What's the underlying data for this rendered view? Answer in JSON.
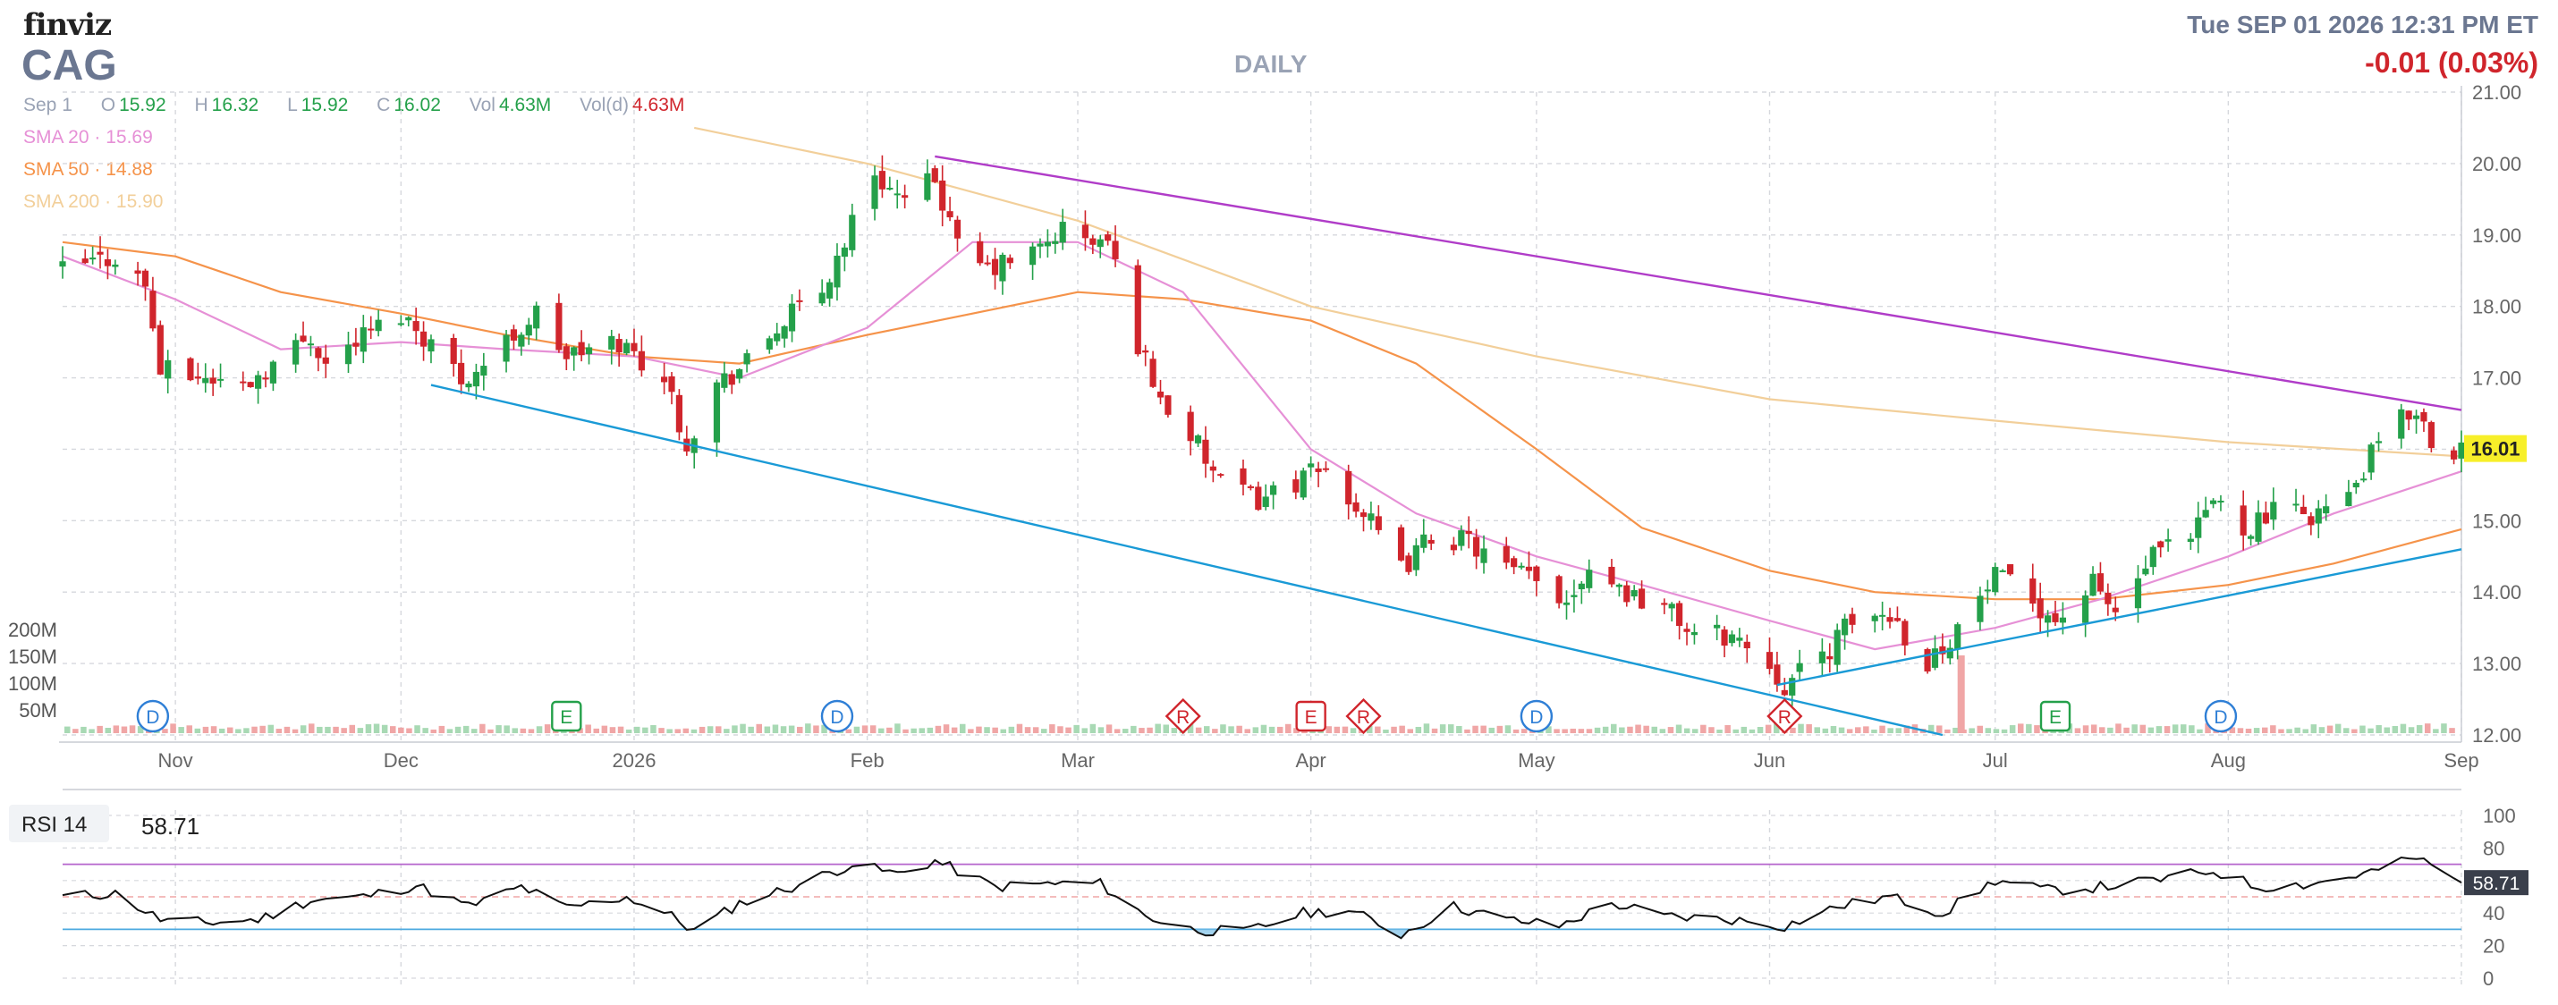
{
  "header": {
    "logo": "finviz",
    "ticker": "CAG",
    "period": "DAILY",
    "datetime": "Tue SEP 01 2026 12:31 PM ET",
    "change": "-0.01 (0.03%)"
  },
  "ohlc": {
    "date": "Sep 1",
    "o_label": "O",
    "o": "15.92",
    "h_label": "H",
    "h": "16.32",
    "l_label": "L",
    "l": "15.92",
    "c_label": "C",
    "c": "16.02",
    "vol_label": "Vol",
    "vol": "4.63M",
    "vold_label": "Vol(d)",
    "vold": "4.63M"
  },
  "sma": [
    {
      "label": "SMA 20",
      "value": "15.69",
      "color": "#e690d6"
    },
    {
      "label": "SMA 50",
      "value": "14.88",
      "color": "#f5934a"
    },
    {
      "label": "SMA 200",
      "value": "15.90",
      "color": "#f2cf9a"
    }
  ],
  "colors": {
    "up": "#24a04a",
    "down": "#d0252c",
    "resistance": "#b03cc8",
    "support": "#1a9ad6",
    "grid": "#d6d8dd"
  },
  "chart_data": [
    {
      "type": "candlestick",
      "title": "DAILY",
      "ylim": [
        12,
        21
      ],
      "y_ticks": [
        "21.00",
        "20.00",
        "19.00",
        "18.00",
        "17.00",
        "16.00",
        "15.00",
        "14.00",
        "13.00",
        "12.00"
      ],
      "x_ticks": [
        "Nov",
        "Dec",
        "2026",
        "Feb",
        "Mar",
        "Apr",
        "May",
        "Jun",
        "Jul",
        "Aug",
        "Sep"
      ],
      "last_price_label": "16.01",
      "volume_ticks": [
        "200M",
        "150M",
        "100M",
        "50M"
      ],
      "close_path": [
        [
          "2025-10-17",
          18.5
        ],
        [
          "2025-10-24",
          18.7
        ],
        [
          "2025-10-28",
          18.3
        ],
        [
          "2025-10-30",
          17.1
        ],
        [
          "2025-11-05",
          17.0
        ],
        [
          "2025-11-10",
          16.9
        ],
        [
          "2025-11-14",
          17.2
        ],
        [
          "2025-11-19",
          17.6
        ],
        [
          "2025-11-21",
          17.2
        ],
        [
          "2025-11-26",
          17.6
        ],
        [
          "2025-12-01",
          17.9
        ],
        [
          "2025-12-05",
          17.5
        ],
        [
          "2025-12-09",
          17.0
        ],
        [
          "2025-12-11",
          17.1
        ],
        [
          "2025-12-16",
          17.6
        ],
        [
          "2025-12-19",
          17.9
        ],
        [
          "2025-12-23",
          17.3
        ],
        [
          "2025-12-30",
          17.5
        ],
        [
          "2026-01-05",
          17.0
        ],
        [
          "2026-01-08",
          16.1
        ],
        [
          "2026-01-12",
          16.9
        ],
        [
          "2026-01-16",
          17.2
        ],
        [
          "2026-01-21",
          17.8
        ],
        [
          "2026-01-26",
          18.2
        ],
        [
          "2026-02-02",
          19.9
        ],
        [
          "2026-02-06",
          19.4
        ],
        [
          "2026-02-10",
          19.8
        ],
        [
          "2026-02-13",
          18.8
        ],
        [
          "2026-02-17",
          18.5
        ],
        [
          "2026-02-24",
          18.8
        ],
        [
          "2026-02-27",
          19.1
        ],
        [
          "2026-03-02",
          18.9
        ],
        [
          "2026-03-05",
          18.9
        ],
        [
          "2026-03-09",
          17.5
        ],
        [
          "2026-03-12",
          16.7
        ],
        [
          "2026-03-16",
          16.2
        ],
        [
          "2026-03-20",
          15.5
        ],
        [
          "2026-03-25",
          15.3
        ],
        [
          "2026-03-31",
          15.6
        ],
        [
          "2026-04-03",
          15.7
        ],
        [
          "2026-04-08",
          15.1
        ],
        [
          "2026-04-13",
          14.3
        ],
        [
          "2026-04-17",
          14.8
        ],
        [
          "2026-04-22",
          14.7
        ],
        [
          "2026-04-27",
          14.3
        ],
        [
          "2026-04-30",
          14.2
        ],
        [
          "2026-05-05",
          13.9
        ],
        [
          "2026-05-08",
          14.4
        ],
        [
          "2026-05-13",
          14.0
        ],
        [
          "2026-05-18",
          13.8
        ],
        [
          "2026-05-22",
          13.4
        ],
        [
          "2026-05-27",
          13.4
        ],
        [
          "2026-06-01",
          13.0
        ],
        [
          "2026-06-03",
          12.7
        ],
        [
          "2026-06-08",
          13.1
        ],
        [
          "2026-06-12",
          13.6
        ],
        [
          "2026-06-17",
          13.7
        ],
        [
          "2026-06-22",
          13.0
        ],
        [
          "2026-06-26",
          13.5
        ],
        [
          "2026-07-01",
          14.2
        ],
        [
          "2026-07-06",
          13.9
        ],
        [
          "2026-07-09",
          13.6
        ],
        [
          "2026-07-14",
          14.1
        ],
        [
          "2026-07-17",
          13.7
        ],
        [
          "2026-07-22",
          14.5
        ],
        [
          "2026-07-27",
          14.7
        ],
        [
          "2026-07-30",
          15.3
        ],
        [
          "2026-08-03",
          14.9
        ],
        [
          "2026-08-07",
          15.1
        ],
        [
          "2026-08-12",
          15.1
        ],
        [
          "2026-08-17",
          15.3
        ],
        [
          "2026-08-21",
          16.1
        ],
        [
          "2026-08-26",
          16.6
        ],
        [
          "2026-08-28",
          16.1
        ],
        [
          "2026-09-01",
          16.0
        ]
      ],
      "sma20_path": [
        [
          "2025-10-17",
          18.7
        ],
        [
          "2025-11-01",
          18.1
        ],
        [
          "2025-11-15",
          17.4
        ],
        [
          "2025-12-01",
          17.5
        ],
        [
          "2025-12-15",
          17.4
        ],
        [
          "2026-01-01",
          17.3
        ],
        [
          "2026-01-15",
          17.0
        ],
        [
          "2026-02-01",
          17.7
        ],
        [
          "2026-02-15",
          18.9
        ],
        [
          "2026-03-01",
          18.9
        ],
        [
          "2026-03-15",
          18.2
        ],
        [
          "2026-04-01",
          16.0
        ],
        [
          "2026-04-15",
          15.1
        ],
        [
          "2026-05-01",
          14.5
        ],
        [
          "2026-05-15",
          14.1
        ],
        [
          "2026-06-01",
          13.6
        ],
        [
          "2026-06-15",
          13.2
        ],
        [
          "2026-07-01",
          13.5
        ],
        [
          "2026-07-15",
          13.9
        ],
        [
          "2026-08-01",
          14.5
        ],
        [
          "2026-08-15",
          15.1
        ],
        [
          "2026-09-01",
          15.69
        ]
      ],
      "sma50_path": [
        [
          "2025-10-17",
          18.9
        ],
        [
          "2025-11-01",
          18.7
        ],
        [
          "2025-11-15",
          18.2
        ],
        [
          "2025-12-01",
          17.9
        ],
        [
          "2025-12-15",
          17.6
        ],
        [
          "2026-01-01",
          17.3
        ],
        [
          "2026-01-15",
          17.2
        ],
        [
          "2026-02-01",
          17.6
        ],
        [
          "2026-02-15",
          17.9
        ],
        [
          "2026-03-01",
          18.2
        ],
        [
          "2026-03-15",
          18.1
        ],
        [
          "2026-04-01",
          17.8
        ],
        [
          "2026-04-15",
          17.2
        ],
        [
          "2026-05-01",
          16.0
        ],
        [
          "2026-05-15",
          14.9
        ],
        [
          "2026-06-01",
          14.3
        ],
        [
          "2026-06-15",
          14.0
        ],
        [
          "2026-07-01",
          13.9
        ],
        [
          "2026-07-15",
          13.9
        ],
        [
          "2026-08-01",
          14.1
        ],
        [
          "2026-08-15",
          14.4
        ],
        [
          "2026-09-01",
          14.88
        ]
      ],
      "sma200_path": [
        [
          "2026-01-09",
          20.5
        ],
        [
          "2026-02-01",
          20.0
        ],
        [
          "2026-03-01",
          19.2
        ],
        [
          "2026-04-01",
          18.0
        ],
        [
          "2026-05-01",
          17.3
        ],
        [
          "2026-06-01",
          16.7
        ],
        [
          "2026-07-01",
          16.4
        ],
        [
          "2026-08-01",
          16.1
        ],
        [
          "2026-09-01",
          15.9
        ]
      ],
      "trendlines": [
        {
          "kind": "resistance",
          "points": [
            [
              "2026-02-10",
              20.1
            ],
            [
              "2026-09-01",
              16.55
            ]
          ]
        },
        {
          "kind": "support",
          "points": [
            [
              "2025-12-05",
              16.9
            ],
            [
              "2026-06-24",
              12.0
            ]
          ]
        },
        {
          "kind": "support",
          "points": [
            [
              "2026-06-02",
              12.7
            ],
            [
              "2026-09-01",
              14.6
            ]
          ]
        }
      ],
      "events": [
        {
          "date": "2025-10-29",
          "label": "D"
        },
        {
          "date": "2025-12-23",
          "label": "E"
        },
        {
          "date": "2026-01-28",
          "label": "D"
        },
        {
          "date": "2026-03-15",
          "label": "R"
        },
        {
          "date": "2026-04-01",
          "label": "E"
        },
        {
          "date": "2026-04-08",
          "label": "R"
        },
        {
          "date": "2026-05-01",
          "label": "D"
        },
        {
          "date": "2026-06-03",
          "label": "R"
        },
        {
          "date": "2026-07-09",
          "label": "E"
        },
        {
          "date": "2026-07-31",
          "label": "D"
        }
      ]
    },
    {
      "type": "line",
      "title": "RSI 14",
      "value_label": "58.71",
      "ylim": [
        0,
        100
      ],
      "y_ticks": [
        "100",
        "80",
        "60",
        "40",
        "20",
        "0"
      ],
      "overbought": 70,
      "oversold": 30,
      "rsi_path": [
        [
          "2025-10-17",
          50
        ],
        [
          "2025-10-24",
          52
        ],
        [
          "2025-10-30",
          36
        ],
        [
          "2025-11-05",
          34
        ],
        [
          "2025-11-12",
          36
        ],
        [
          "2025-11-19",
          48
        ],
        [
          "2025-11-26",
          50
        ],
        [
          "2025-12-03",
          57
        ],
        [
          "2025-12-10",
          44
        ],
        [
          "2025-12-17",
          56
        ],
        [
          "2025-12-23",
          43
        ],
        [
          "2025-12-31",
          50
        ],
        [
          "2026-01-06",
          38
        ],
        [
          "2026-01-09",
          29
        ],
        [
          "2026-01-15",
          46
        ],
        [
          "2026-01-22",
          56
        ],
        [
          "2026-01-30",
          70
        ],
        [
          "2026-02-05",
          64
        ],
        [
          "2026-02-10",
          72
        ],
        [
          "2026-02-18",
          56
        ],
        [
          "2026-02-25",
          58
        ],
        [
          "2026-03-04",
          58
        ],
        [
          "2026-03-10",
          38
        ],
        [
          "2026-03-16",
          30
        ],
        [
          "2026-03-23",
          28
        ],
        [
          "2026-03-31",
          40
        ],
        [
          "2026-04-06",
          42
        ],
        [
          "2026-04-13",
          27
        ],
        [
          "2026-04-20",
          44
        ],
        [
          "2026-04-27",
          36
        ],
        [
          "2026-05-04",
          32
        ],
        [
          "2026-05-11",
          46
        ],
        [
          "2026-05-18",
          38
        ],
        [
          "2026-05-27",
          36
        ],
        [
          "2026-06-03",
          32
        ],
        [
          "2026-06-10",
          44
        ],
        [
          "2026-06-17",
          50
        ],
        [
          "2026-06-24",
          40
        ],
        [
          "2026-07-01",
          60
        ],
        [
          "2026-07-08",
          54
        ],
        [
          "2026-07-15",
          56
        ],
        [
          "2026-07-22",
          60
        ],
        [
          "2026-07-30",
          66
        ],
        [
          "2026-08-05",
          56
        ],
        [
          "2026-08-12",
          58
        ],
        [
          "2026-08-19",
          64
        ],
        [
          "2026-08-26",
          74
        ],
        [
          "2026-09-01",
          58.71
        ]
      ]
    }
  ]
}
